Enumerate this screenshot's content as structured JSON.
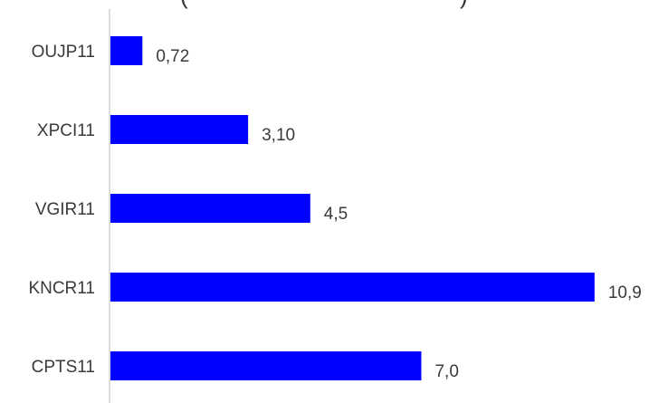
{
  "chart_data": {
    "type": "bar",
    "orientation": "horizontal",
    "categories": [
      "OUJP11",
      "XPCI11",
      "VGIR11",
      "KNCR11",
      "CPTS11"
    ],
    "values": [
      0.72,
      3.1,
      4.5,
      10.9,
      7.0
    ],
    "value_labels": [
      "0,72",
      "3,10",
      "4,5",
      "10,9",
      "7,0"
    ],
    "xlim": [
      0,
      11.8
    ],
    "grid": false,
    "legend": "none",
    "colors": {
      "bar": "#0000ff",
      "axis": "#d0d0d0",
      "text": "#3a3a3a"
    }
  }
}
